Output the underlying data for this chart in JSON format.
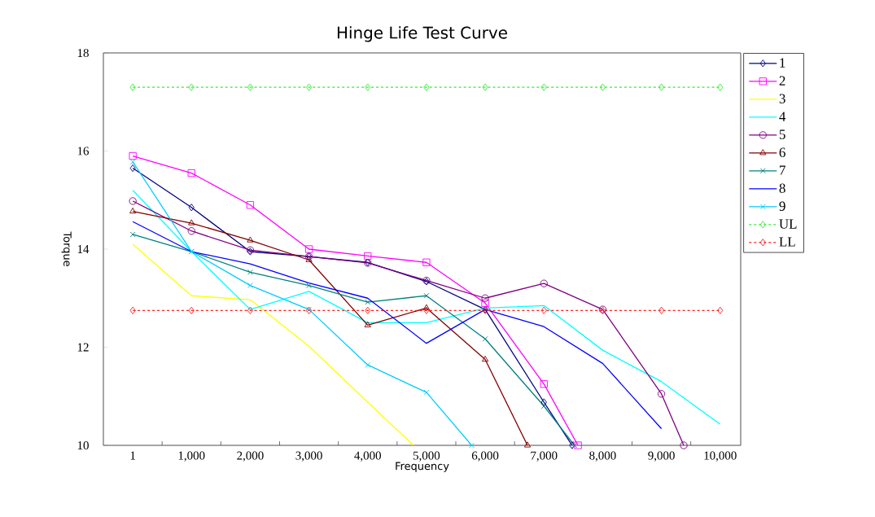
{
  "chart_data": {
    "type": "line",
    "title": "Hinge Life Test Curve",
    "xlabel": "Frequency",
    "ylabel": "Torque",
    "xlim": [
      -500,
      10350
    ],
    "ylim": [
      10,
      18
    ],
    "xticks": [
      {
        "value": 1,
        "label": "1"
      },
      {
        "value": 500,
        "label": null
      },
      {
        "value": 1000,
        "label": "1,000"
      },
      {
        "value": 1500,
        "label": null
      },
      {
        "value": 2000,
        "label": "2,000"
      },
      {
        "value": 2500,
        "label": null
      },
      {
        "value": 3000,
        "label": "3,000"
      },
      {
        "value": 3500,
        "label": null
      },
      {
        "value": 4000,
        "label": "4,000"
      },
      {
        "value": 4500,
        "label": null
      },
      {
        "value": 5000,
        "label": "5,000"
      },
      {
        "value": 5500,
        "label": null
      },
      {
        "value": 6000,
        "label": "6,000"
      },
      {
        "value": 6500,
        "label": null
      },
      {
        "value": 7000,
        "label": "7,000"
      },
      {
        "value": 7500,
        "label": null
      },
      {
        "value": 8000,
        "label": "8,000"
      },
      {
        "value": 8500,
        "label": null
      },
      {
        "value": 9000,
        "label": "9,000"
      },
      {
        "value": 9500,
        "label": null
      },
      {
        "value": 10000,
        "label": "10,000"
      }
    ],
    "yticks": [
      10,
      12,
      14,
      16,
      18
    ],
    "grid": false,
    "legend": "right",
    "line_style": "solid",
    "series": [
      {
        "name": "1",
        "color": "#000080",
        "marker": "diamond",
        "x": [
          1,
          1000,
          2000,
          3000,
          4000,
          5000,
          6000,
          7000,
          7480
        ],
        "values": [
          15.65,
          14.85,
          13.95,
          13.85,
          13.73,
          13.34,
          12.77,
          10.88,
          10
        ]
      },
      {
        "name": "2",
        "color": "#ff00ff",
        "marker": "square",
        "x": [
          1,
          1000,
          2000,
          3000,
          4000,
          5000,
          6000,
          7000,
          7580
        ],
        "values": [
          15.9,
          15.55,
          14.9,
          14.0,
          13.86,
          13.73,
          12.9,
          11.25,
          10
        ]
      },
      {
        "name": "3",
        "color": "#ffff00",
        "marker": "none",
        "x": [
          1,
          1000,
          2000,
          3000,
          4000,
          4780
        ],
        "values": [
          14.1,
          13.05,
          12.97,
          12.02,
          10.88,
          10
        ]
      },
      {
        "name": "4",
        "color": "#00ffff",
        "marker": "none",
        "x": [
          1,
          1000,
          2000,
          3000,
          4000,
          5000,
          6000,
          7000,
          8000,
          9000,
          10000
        ],
        "values": [
          15.2,
          13.95,
          12.77,
          13.14,
          12.5,
          12.5,
          12.8,
          12.85,
          11.94,
          11.3,
          10.43
        ]
      },
      {
        "name": "5",
        "color": "#800080",
        "marker": "circle",
        "x": [
          1,
          1000,
          2000,
          3000,
          4000,
          5000,
          6000,
          7000,
          8000,
          9000,
          9380
        ],
        "values": [
          14.98,
          14.37,
          13.98,
          13.85,
          13.72,
          13.36,
          13.0,
          13.3,
          12.77,
          11.05,
          10
        ]
      },
      {
        "name": "6",
        "color": "#800000",
        "marker": "triangle",
        "x": [
          1,
          1000,
          2000,
          3000,
          4000,
          5000,
          6000,
          6720
        ],
        "values": [
          14.77,
          14.53,
          14.18,
          13.78,
          12.45,
          12.8,
          11.75,
          10
        ]
      },
      {
        "name": "7",
        "color": "#008080",
        "marker": "cross",
        "x": [
          1,
          1000,
          2000,
          3000,
          4000,
          5000,
          6000,
          7000,
          7520
        ],
        "values": [
          14.3,
          13.95,
          13.53,
          13.26,
          12.92,
          13.05,
          12.17,
          10.8,
          10
        ]
      },
      {
        "name": "8",
        "color": "#0000ff",
        "marker": "none",
        "x": [
          1,
          1000,
          2000,
          3000,
          4000,
          5000,
          6000,
          7000,
          8000,
          9000
        ],
        "values": [
          14.56,
          13.95,
          13.7,
          13.31,
          13.0,
          12.08,
          12.77,
          12.42,
          11.67,
          10.34
        ]
      },
      {
        "name": "9",
        "color": "#00ccff",
        "marker": "cross",
        "x": [
          1,
          1000,
          2000,
          3000,
          4000,
          5000,
          5770
        ],
        "values": [
          15.78,
          13.95,
          13.26,
          12.77,
          11.64,
          11.08,
          10
        ]
      },
      {
        "name": "UL",
        "color": "#33ee33",
        "marker": "diamond",
        "line_style": "dashed",
        "x": [
          1,
          1000,
          2000,
          3000,
          4000,
          5000,
          6000,
          7000,
          8000,
          9000,
          10000
        ],
        "values": [
          17.3,
          17.3,
          17.3,
          17.3,
          17.3,
          17.3,
          17.3,
          17.3,
          17.3,
          17.3,
          17.3
        ]
      },
      {
        "name": "LL",
        "color": "#ff2020",
        "marker": "diamond",
        "line_style": "dashed",
        "x": [
          1,
          1000,
          2000,
          3000,
          4000,
          5000,
          6000,
          7000,
          8000,
          9000,
          10000
        ],
        "values": [
          12.75,
          12.75,
          12.75,
          12.75,
          12.75,
          12.75,
          12.75,
          12.75,
          12.75,
          12.75,
          12.75
        ]
      }
    ]
  }
}
